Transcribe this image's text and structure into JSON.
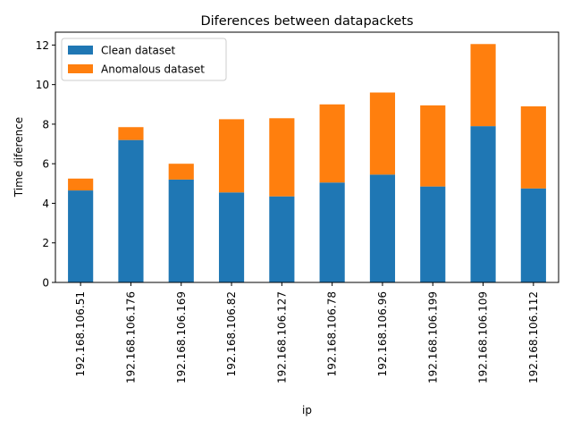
{
  "chart_data": {
    "type": "bar",
    "stacked": true,
    "title": "Diferences between datapackets",
    "xlabel": "ip",
    "ylabel": "Time diference",
    "categories": [
      "192.168.106.51",
      "192.168.106.176",
      "192.168.106.169",
      "192.168.106.82",
      "192.168.106.127",
      "192.168.106.78",
      "192.168.106.96",
      "192.168.106.199",
      "192.168.106.109",
      "192.168.106.112"
    ],
    "series": [
      {
        "name": "Clean dataset",
        "color": "#1f77b4",
        "values": [
          4.65,
          7.2,
          5.2,
          4.55,
          4.35,
          5.05,
          5.45,
          4.85,
          7.9,
          4.75
        ]
      },
      {
        "name": "Anomalous dataset",
        "color": "#ff7f0e",
        "values": [
          0.6,
          0.65,
          0.8,
          3.7,
          3.95,
          3.95,
          4.15,
          4.1,
          4.15,
          4.15
        ]
      }
    ],
    "ylim": [
      0,
      12.65
    ],
    "yticks": [
      0,
      2,
      4,
      6,
      8,
      10,
      12
    ],
    "grid": false,
    "legend_position": "upper-left"
  }
}
